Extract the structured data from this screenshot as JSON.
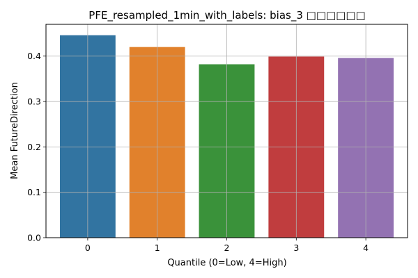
{
  "chart_data": {
    "type": "bar",
    "title": "PFE_resampled_1min_with_labels: bias_3 □□□□□□",
    "xlabel": "Quantile (0=Low, 4=High)",
    "ylabel": "Mean FutureDirection",
    "categories": [
      "0",
      "1",
      "2",
      "3",
      "4"
    ],
    "values": [
      0.446,
      0.42,
      0.382,
      0.399,
      0.396
    ],
    "colors": [
      "#3274a1",
      "#e1812c",
      "#3a923a",
      "#c03d3e",
      "#9372b2"
    ],
    "ylim": [
      0,
      0.47
    ],
    "yticks": [
      {
        "value": 0.0,
        "label": "0.0"
      },
      {
        "value": 0.1,
        "label": "0.1"
      },
      {
        "value": 0.2,
        "label": "0.2"
      },
      {
        "value": 0.3,
        "label": "0.3"
      },
      {
        "value": 0.4,
        "label": "0.4"
      }
    ],
    "grid": true,
    "legend": "none"
  }
}
